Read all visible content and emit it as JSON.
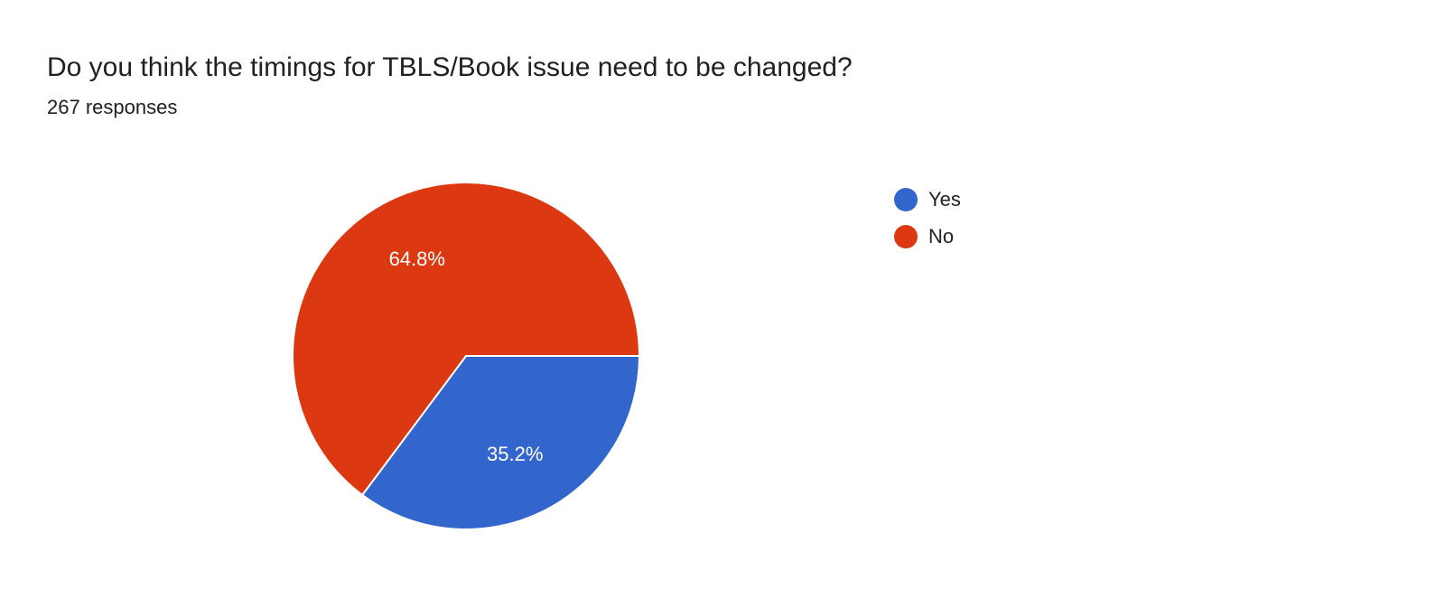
{
  "title": "Do you think the timings for TBLS/Book issue need to be changed?",
  "subtitle": "267 responses",
  "chart_data": {
    "type": "pie",
    "categories": [
      "Yes",
      "No"
    ],
    "values": [
      35.2,
      64.8
    ],
    "labels": [
      "35.2%",
      "64.8%"
    ],
    "colors": [
      "#3366cc",
      "#dc3912"
    ],
    "legend": "right"
  }
}
